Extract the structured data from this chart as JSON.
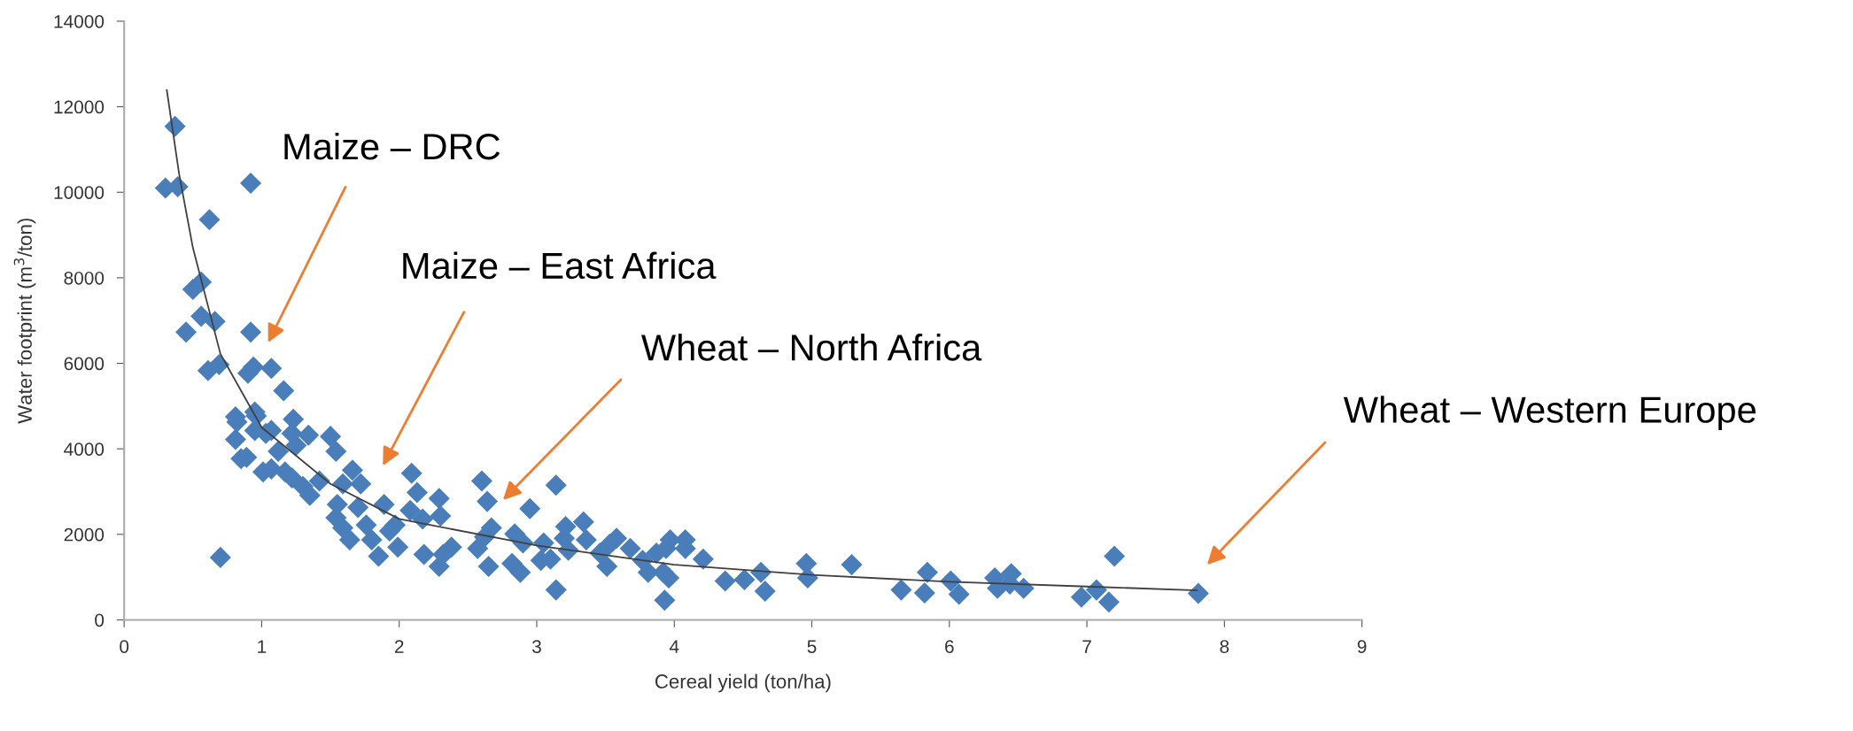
{
  "chart_data": {
    "type": "scatter",
    "xlabel": "Cereal yield (ton/ha)",
    "ylabel": "Water footprint (m$^{3}$/ton)",
    "xlim": [
      0,
      9
    ],
    "ylim": [
      0,
      14000
    ],
    "xticks": [
      0,
      1,
      2,
      3,
      4,
      5,
      6,
      7,
      8,
      9
    ],
    "yticks": [
      0,
      2000,
      4000,
      6000,
      8000,
      10000,
      12000,
      14000
    ],
    "grid": false,
    "legend": false,
    "series": [
      {
        "color": "#4a7ebb",
        "marker": "diamond",
        "x": [
          0.3,
          0.37,
          0.39,
          0.92,
          0.62,
          0.5,
          0.56,
          0.56,
          0.66,
          0.45,
          0.92,
          0.61,
          0.69,
          0.9,
          0.94,
          1.07,
          1.16,
          0.81,
          0.95,
          1.23,
          0.82,
          0.81,
          0.85,
          0.89,
          0.96,
          0.95,
          1.03,
          1.07,
          1.01,
          1.07,
          1.12,
          1.22,
          1.25,
          1.34,
          1.17,
          1.22,
          1.3,
          1.35,
          1.42,
          1.5,
          1.54,
          1.59,
          1.66,
          1.72,
          1.55,
          1.54,
          1.59,
          1.64,
          1.7,
          1.76,
          1.8,
          1.85,
          1.89,
          1.93,
          1.97,
          1.99,
          2.09,
          2.13,
          2.08,
          2.17,
          2.18,
          2.29,
          2.3,
          2.29,
          2.32,
          2.38,
          2.6,
          2.64,
          2.67,
          2.62,
          2.57,
          2.65,
          2.84,
          2.9,
          2.82,
          2.88,
          2.95,
          3.05,
          3.03,
          3.14,
          3.14,
          0.7,
          3.1,
          3.21,
          3.2,
          3.23,
          3.34,
          3.36,
          3.46,
          3.51,
          3.53,
          3.58,
          3.68,
          3.77,
          3.81,
          3.87,
          3.92,
          3.96,
          3.93,
          3.97,
          3.94,
          4.08,
          4.08,
          4.21,
          4.37,
          4.51,
          4.63,
          4.66,
          4.96,
          4.97,
          5.29,
          5.65,
          5.84,
          5.82,
          6.01,
          6.07,
          6.33,
          6.35,
          6.45,
          6.44,
          6.54,
          6.96,
          7.07,
          7.16,
          7.2,
          7.81
        ],
        "values": [
          10100,
          11540,
          10130,
          10210,
          9360,
          7730,
          7900,
          7100,
          6980,
          6730,
          6730,
          5830,
          5970,
          5770,
          5910,
          5880,
          5360,
          4750,
          4860,
          4690,
          4630,
          4220,
          3770,
          3800,
          4770,
          4430,
          4360,
          4430,
          3460,
          3530,
          3940,
          4360,
          4080,
          4320,
          3460,
          3320,
          3120,
          2910,
          3250,
          4290,
          3940,
          3180,
          3500,
          3180,
          2700,
          2390,
          2150,
          1870,
          2630,
          2220,
          1870,
          1490,
          2700,
          2080,
          2220,
          1700,
          3430,
          2980,
          2560,
          2360,
          1530,
          2840,
          2430,
          1250,
          1530,
          1700,
          3250,
          2770,
          2150,
          1940,
          1670,
          1250,
          2010,
          1800,
          1320,
          1110,
          2600,
          1800,
          1390,
          3150,
          700,
          1460,
          1420,
          2180,
          1910,
          1630,
          2290,
          1870,
          1560,
          1250,
          1770,
          1910,
          1670,
          1390,
          1110,
          1560,
          1110,
          980,
          460,
          1870,
          1670,
          1870,
          1670,
          1420,
          910,
          940,
          1110,
          670,
          1320,
          980,
          1290,
          700,
          1110,
          630,
          910,
          600,
          980,
          740,
          1080,
          840,
          740,
          530,
          700,
          420,
          1490,
          620
        ]
      },
      {
        "type": "line",
        "color": "#404040",
        "marker": "none",
        "line_style": "solid",
        "x": [
          0.31,
          0.4,
          0.5,
          0.7,
          1.0,
          1.5,
          2,
          3,
          4,
          5,
          6,
          7,
          7.8
        ],
        "values": [
          12390,
          10420,
          8700,
          6220,
          4500,
          3180,
          2360,
          1740,
          1290,
          1050,
          890,
          780,
          690
        ]
      }
    ],
    "annotations": [
      "Maize – DRC",
      "Maize – East Africa",
      "Wheat – North Africa",
      "Wheat – Western Europe"
    ]
  }
}
